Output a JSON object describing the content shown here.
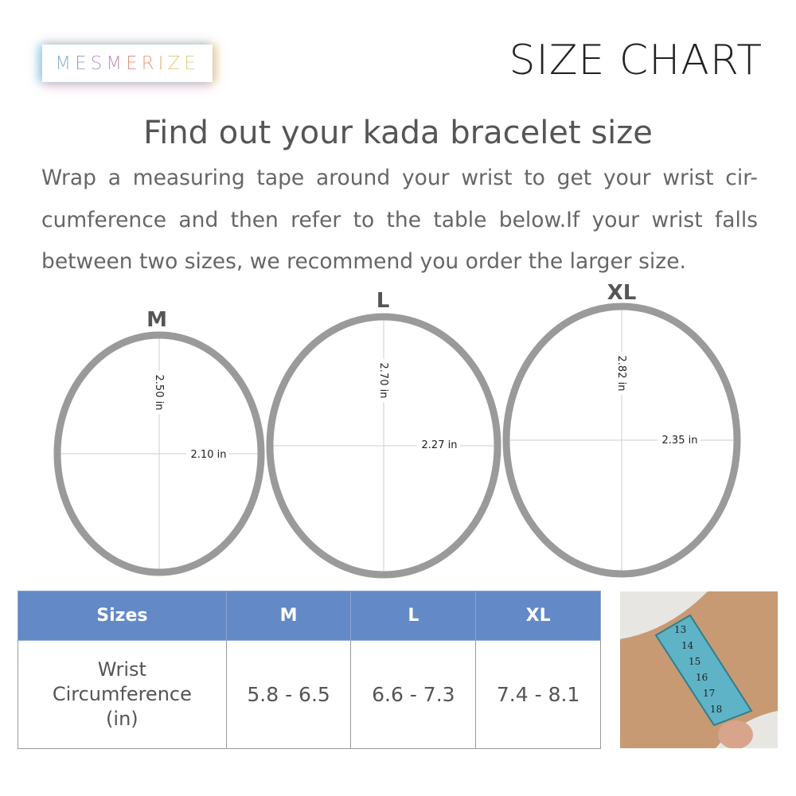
{
  "brand": {
    "logo_letters": [
      "M",
      "E",
      "S",
      "M",
      "E",
      "R",
      "I",
      "Z",
      "E"
    ],
    "logo_colors": [
      "#8fb3cf",
      "#9b9ccc",
      "#b09ac8",
      "#c493b6",
      "#e0927f",
      "#e59e82",
      "#e3b07f",
      "#e2c77f",
      "#d7d28a"
    ]
  },
  "header": {
    "title": "SIZE CHART"
  },
  "heading": "Find out your kada bracelet size",
  "description": "Wrap a measuring tape around your wrist to get your wrist cir- cumference and then refer to the table below.If your wrist falls between two sizes, we recommend you order the larger size.",
  "rings": [
    {
      "size": "M",
      "height": "2.50 in",
      "width": "2.10 in"
    },
    {
      "size": "L",
      "height": "2.70 in",
      "width": "2.27 in"
    },
    {
      "size": "XL",
      "height": "2.82 in",
      "width": "2.35 in"
    }
  ],
  "table": {
    "headers": [
      "Sizes",
      "M",
      "L",
      "XL"
    ],
    "row_label": [
      "Wrist",
      "Circumference",
      "(in)"
    ],
    "values": [
      "5.8 - 6.5",
      "6.6 - 7.3",
      "7.4 - 8.1"
    ],
    "header_color": "#6389c6"
  },
  "photo": {
    "tape_numbers": [
      "13",
      "14",
      "15",
      "16",
      "17",
      "18"
    ]
  },
  "colors": {
    "ring": "#9a9a9a"
  }
}
